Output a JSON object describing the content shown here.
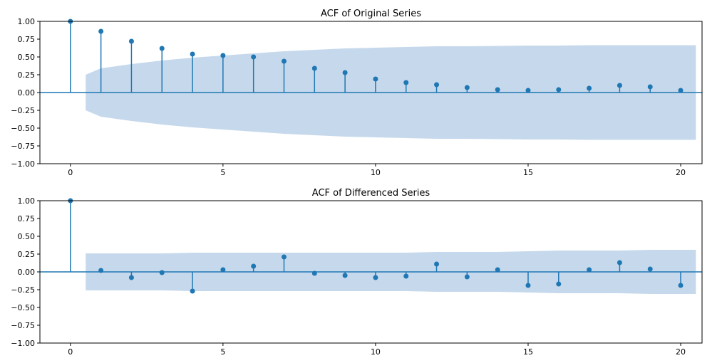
{
  "chart_data": [
    {
      "type": "stem",
      "title": "ACF of Original Series",
      "xlabel": "",
      "ylabel": "",
      "xlim": [
        -1,
        20.7
      ],
      "ylim": [
        -1.0,
        1.0
      ],
      "xticks": [
        0,
        5,
        10,
        15,
        20
      ],
      "yticks": [
        -1.0,
        -0.75,
        -0.5,
        -0.25,
        0.0,
        0.25,
        0.5,
        0.75,
        1.0
      ],
      "ytick_labels": [
        "−1.00",
        "−0.75",
        "−0.50",
        "−0.25",
        "0.00",
        "0.25",
        "0.50",
        "0.75",
        "1.00"
      ],
      "grid": false,
      "lags": [
        0,
        1,
        2,
        3,
        4,
        5,
        6,
        7,
        8,
        9,
        10,
        11,
        12,
        13,
        14,
        15,
        16,
        17,
        18,
        19,
        20
      ],
      "acf": [
        1.0,
        0.86,
        0.72,
        0.62,
        0.54,
        0.52,
        0.5,
        0.44,
        0.34,
        0.28,
        0.19,
        0.14,
        0.11,
        0.07,
        0.04,
        0.03,
        0.04,
        0.06,
        0.1,
        0.08,
        0.03
      ],
      "confint": [
        0.25,
        0.34,
        0.4,
        0.45,
        0.49,
        0.52,
        0.55,
        0.58,
        0.6,
        0.62,
        0.63,
        0.64,
        0.65,
        0.65,
        0.655,
        0.66,
        0.66,
        0.665,
        0.665,
        0.665,
        0.665
      ],
      "colors": {
        "stem": "#1f77b4",
        "band": "#c6d9ec"
      }
    },
    {
      "type": "stem",
      "title": "ACF of Differenced Series",
      "xlabel": "",
      "ylabel": "",
      "xlim": [
        -1,
        20.7
      ],
      "ylim": [
        -1.0,
        1.0
      ],
      "xticks": [
        0,
        5,
        10,
        15,
        20
      ],
      "yticks": [
        -1.0,
        -0.75,
        -0.5,
        -0.25,
        0.0,
        0.25,
        0.5,
        0.75,
        1.0
      ],
      "ytick_labels": [
        "−1.00",
        "−0.75",
        "−0.50",
        "−0.25",
        "0.00",
        "0.25",
        "0.50",
        "0.75",
        "1.00"
      ],
      "grid": false,
      "lags": [
        0,
        1,
        2,
        3,
        4,
        5,
        6,
        7,
        8,
        9,
        10,
        11,
        12,
        13,
        14,
        15,
        16,
        17,
        18,
        19,
        20
      ],
      "acf": [
        1.0,
        0.02,
        -0.08,
        -0.01,
        -0.27,
        0.03,
        0.08,
        0.21,
        -0.02,
        -0.05,
        -0.08,
        -0.06,
        0.11,
        -0.07,
        0.03,
        -0.19,
        -0.17,
        0.03,
        0.13,
        0.04,
        -0.19
      ],
      "confint": [
        0.26,
        0.26,
        0.26,
        0.26,
        0.27,
        0.27,
        0.27,
        0.27,
        0.27,
        0.27,
        0.27,
        0.27,
        0.28,
        0.28,
        0.28,
        0.29,
        0.3,
        0.3,
        0.3,
        0.31,
        0.31
      ],
      "colors": {
        "stem": "#1f77b4",
        "band": "#c6d9ec"
      }
    }
  ]
}
